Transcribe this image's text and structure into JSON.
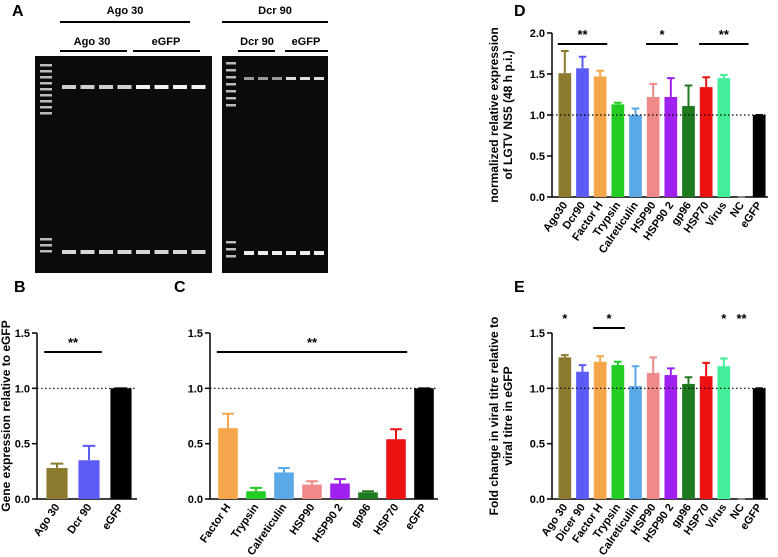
{
  "gel_panel": {
    "panel": "A",
    "labels": [
      "Ago 30",
      "Ago 30",
      "eGFP",
      "Dcr 90",
      "Dcr 90",
      "eGFP"
    ]
  },
  "chart_data": [
    {
      "type": "bar",
      "panel": "B",
      "ylabel": [
        "Gene expression relative to eGFP"
      ],
      "categories": [
        "Ago 30",
        "Dcr 90",
        "eGFP"
      ],
      "values": [
        0.28,
        0.35,
        1.0
      ],
      "errors": [
        0.04,
        0.13,
        0
      ],
      "colors": [
        "#8c7b2f",
        "#5b5bf5",
        "#000000"
      ],
      "ylim": [
        0,
        1.5
      ],
      "yticks": [
        {
          "value": 0,
          "label": "0.0"
        },
        0.5,
        {
          "value": 1,
          "label": "1.0"
        },
        1.5
      ],
      "ref_line": 1,
      "annotations": [
        {
          "text": "**",
          "from": "Ago 30",
          "to": "Dcr 90"
        }
      ]
    },
    {
      "type": "bar",
      "panel": "C",
      "categories": [
        "Factor H",
        "Trypsin",
        "Calreticulin",
        "HSP90",
        "HSP90 2",
        "gp96",
        "HSP70",
        "eGFP"
      ],
      "values": [
        0.64,
        0.07,
        0.24,
        0.13,
        0.14,
        0.06,
        0.54,
        1.0
      ],
      "errors": [
        0.13,
        0.03,
        0.04,
        0.03,
        0.04,
        0.01,
        0.09,
        0
      ],
      "colors": [
        "#f5a64a",
        "#22cc22",
        "#5aa9e6",
        "#f08a8a",
        "#a020f0",
        "#1e7a1e",
        "#ee1111",
        "#000000"
      ],
      "ylim": [
        0,
        1.5
      ],
      "yticks": [
        {
          "value": 0,
          "label": "0.0"
        },
        0.5,
        {
          "value": 1,
          "label": "1.0"
        },
        1.5
      ],
      "ref_line": 1,
      "annotations": [
        {
          "text": "**",
          "from": "Factor H",
          "to": "HSP70"
        }
      ]
    },
    {
      "type": "bar",
      "panel": "D",
      "ylabel": [
        "normalized relative expression",
        "of LGTV NS5 (48 h p.i.)"
      ],
      "categories": [
        "Ago30",
        "Dcr90",
        "Factor H",
        "Trypsin",
        "Calreticulin",
        "HSP90",
        "HSP90 2",
        "gp96",
        "HSP70",
        "Virus",
        "NC",
        "eGFP"
      ],
      "values": [
        1.51,
        1.57,
        1.47,
        1.13,
        1.0,
        1.22,
        1.22,
        1.11,
        1.34,
        1.45,
        0,
        1.0
      ],
      "errors": [
        0.27,
        0.14,
        0.07,
        0.02,
        0.08,
        0.16,
        0.23,
        0.25,
        0.12,
        0.04,
        0,
        0
      ],
      "colors": [
        "#8c7b2f",
        "#5b5bf5",
        "#f5a64a",
        "#22cc22",
        "#5aa9e6",
        "#f08a8a",
        "#a020f0",
        "#1e7a1e",
        "#ee1111",
        "#44ee99",
        "#888888",
        "#000000"
      ],
      "ylim": [
        0,
        2
      ],
      "yticks": [
        {
          "value": 0,
          "label": "0.0"
        },
        0.5,
        {
          "value": 1,
          "label": "1.0"
        },
        1.5,
        {
          "value": 2,
          "label": "2.0"
        }
      ],
      "ref_line": 1,
      "annotations": [
        {
          "text": "**",
          "from": "Ago30",
          "to": "Factor H"
        },
        {
          "text": "*",
          "from": "HSP90",
          "to": "HSP90 2"
        },
        {
          "text": "**",
          "from": "HSP70",
          "to": "NC"
        }
      ]
    },
    {
      "type": "bar",
      "panel": "E",
      "ylabel": [
        "Fold change in viral titre relative to",
        "viral titre in eGFP"
      ],
      "categories": [
        "Ago 30",
        "Dicer 90",
        "Factor H",
        "Trypsin",
        "Calreticulin",
        "HSP90",
        "HSP90 2",
        "gp96",
        "HSP70",
        "Virus",
        "NC",
        "eGFP"
      ],
      "values": [
        1.28,
        1.15,
        1.24,
        1.21,
        1.02,
        1.14,
        1.12,
        1.04,
        1.11,
        1.2,
        0,
        1.0
      ],
      "errors": [
        0.02,
        0.06,
        0.05,
        0.03,
        0.18,
        0.14,
        0.06,
        0.06,
        0.12,
        0.07,
        0,
        0
      ],
      "colors": [
        "#8c7b2f",
        "#5b5bf5",
        "#f5a64a",
        "#22cc22",
        "#5aa9e6",
        "#f08a8a",
        "#a020f0",
        "#1e7a1e",
        "#ee1111",
        "#44ee99",
        "#888888",
        "#000000"
      ],
      "ylim": [
        0,
        1.5
      ],
      "yticks": [
        {
          "value": 0,
          "label": "0.0"
        },
        0.5,
        {
          "value": 1,
          "label": "1.0"
        },
        1.5
      ],
      "ref_line": 1,
      "annotations": [
        {
          "text": "*",
          "from": "Ago 30",
          "to": "Ago 30"
        },
        {
          "text": "*",
          "from": "Factor H",
          "to": "Trypsin"
        },
        {
          "text": "*",
          "from": "Virus",
          "to": "Virus"
        },
        {
          "text": "**",
          "from": "NC",
          "to": "NC"
        }
      ]
    }
  ]
}
